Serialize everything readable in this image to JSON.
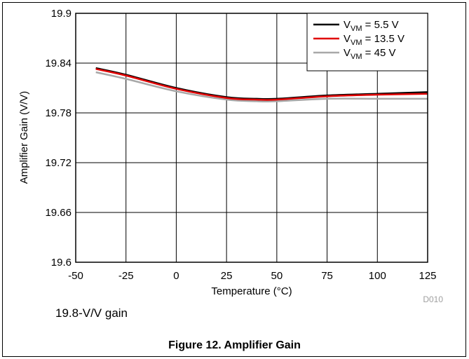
{
  "chart_data": {
    "type": "line",
    "xlabel": "Temperature (°C)",
    "ylabel": "Amplifier Gain (V/V)",
    "xlim": [
      -50,
      125
    ],
    "ylim": [
      19.6,
      19.9
    ],
    "xticks": [
      "-50",
      "-25",
      "0",
      "25",
      "50",
      "75",
      "100",
      "125"
    ],
    "yticks": [
      "19.6",
      "19.66",
      "19.72",
      "19.78",
      "19.84",
      "19.9"
    ],
    "grid": true,
    "legend_position": "top-right",
    "series": [
      {
        "name": "V_VM = 5.5 V",
        "label_main": "V",
        "label_sub": "VM",
        "label_rest": " = 5.5 V",
        "color": "#000000",
        "x": [
          -40,
          -25,
          0,
          25,
          40,
          50,
          75,
          100,
          125
        ],
        "y": [
          19.834,
          19.826,
          19.81,
          19.799,
          19.797,
          19.797,
          19.801,
          19.803,
          19.805
        ]
      },
      {
        "name": "V_VM = 13.5 V",
        "label_main": "V",
        "label_sub": "VM",
        "label_rest": " = 13.5 V",
        "color": "#e00000",
        "x": [
          -40,
          -25,
          0,
          25,
          40,
          50,
          75,
          100,
          125
        ],
        "y": [
          19.833,
          19.825,
          19.809,
          19.798,
          19.796,
          19.796,
          19.8,
          19.802,
          19.803
        ]
      },
      {
        "name": "V_VM = 45 V",
        "label_main": "V",
        "label_sub": "VM",
        "label_rest": " = 45 V",
        "color": "#a8a8a8",
        "x": [
          -40,
          -25,
          0,
          25,
          40,
          50,
          75,
          100,
          125
        ],
        "y": [
          19.829,
          19.821,
          19.806,
          19.796,
          19.794,
          19.794,
          19.797,
          19.797,
          19.797
        ]
      }
    ]
  },
  "figure_code": "D010",
  "note": "19.8-V/V gain",
  "caption": "Figure 12. Amplifier Gain"
}
